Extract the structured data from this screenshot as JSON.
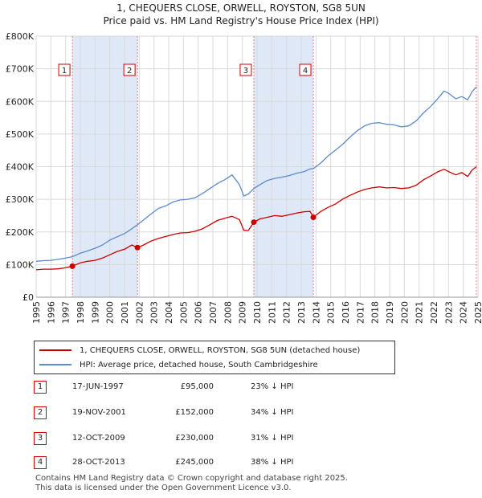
{
  "title_line1": "1, CHEQUERS CLOSE, ORWELL, ROYSTON, SG8 5UN",
  "title_line2": "Price paid vs. HM Land Registry's House Price Index (HPI)",
  "colors": {
    "property": "#cc0000",
    "hpi": "#5b8bc9",
    "shade": "#dce6f5",
    "vline": "#e08080"
  },
  "chart_data": {
    "type": "line",
    "xlim": [
      1995,
      2025
    ],
    "ylim": [
      0,
      800000
    ],
    "x_ticks": [
      "1995",
      "1996",
      "1997",
      "1998",
      "1999",
      "2000",
      "2001",
      "2002",
      "2003",
      "2004",
      "2005",
      "2006",
      "2007",
      "2008",
      "2009",
      "2010",
      "2011",
      "2012",
      "2013",
      "2014",
      "2015",
      "2016",
      "2017",
      "2018",
      "2019",
      "2020",
      "2021",
      "2022",
      "2023",
      "2024",
      "2025"
    ],
    "y_ticks": [
      {
        "value": 0,
        "label": "£0"
      },
      {
        "value": 100000,
        "label": "£100K"
      },
      {
        "value": 200000,
        "label": "£200K"
      },
      {
        "value": 300000,
        "label": "£300K"
      },
      {
        "value": 400000,
        "label": "£400K"
      },
      {
        "value": 500000,
        "label": "£500K"
      },
      {
        "value": 600000,
        "label": "£600K"
      },
      {
        "value": 700000,
        "label": "£700K"
      },
      {
        "value": 800000,
        "label": "£800K"
      }
    ],
    "shaded_ranges": [
      [
        1997.46,
        2001.88
      ],
      [
        2009.78,
        2013.82
      ]
    ],
    "series": [
      {
        "name": "1, CHEQUERS CLOSE, ORWELL, ROYSTON, SG8 5UN (detached house)",
        "color": "#cc0000",
        "points": [
          [
            1995.0,
            84000
          ],
          [
            1995.5,
            86000
          ],
          [
            1996.0,
            86000
          ],
          [
            1996.5,
            87000
          ],
          [
            1997.0,
            90000
          ],
          [
            1997.46,
            95000
          ],
          [
            1998.0,
            105000
          ],
          [
            1998.5,
            110000
          ],
          [
            1999.0,
            113000
          ],
          [
            1999.5,
            120000
          ],
          [
            2000.0,
            130000
          ],
          [
            2000.5,
            140000
          ],
          [
            2001.0,
            147000
          ],
          [
            2001.5,
            160000
          ],
          [
            2001.88,
            152000
          ],
          [
            2002.3,
            160000
          ],
          [
            2002.8,
            172000
          ],
          [
            2003.3,
            180000
          ],
          [
            2003.8,
            186000
          ],
          [
            2004.3,
            192000
          ],
          [
            2004.8,
            197000
          ],
          [
            2005.3,
            198000
          ],
          [
            2005.8,
            202000
          ],
          [
            2006.3,
            210000
          ],
          [
            2006.8,
            222000
          ],
          [
            2007.3,
            235000
          ],
          [
            2007.8,
            242000
          ],
          [
            2008.3,
            248000
          ],
          [
            2008.8,
            238000
          ],
          [
            2009.1,
            205000
          ],
          [
            2009.4,
            204000
          ],
          [
            2009.78,
            230000
          ],
          [
            2010.2,
            240000
          ],
          [
            2010.7,
            245000
          ],
          [
            2011.2,
            250000
          ],
          [
            2011.7,
            248000
          ],
          [
            2012.2,
            253000
          ],
          [
            2012.7,
            258000
          ],
          [
            2013.2,
            262000
          ],
          [
            2013.6,
            263000
          ],
          [
            2013.82,
            245000
          ],
          [
            2014.3,
            262000
          ],
          [
            2014.8,
            275000
          ],
          [
            2015.3,
            285000
          ],
          [
            2015.8,
            300000
          ],
          [
            2016.3,
            312000
          ],
          [
            2016.8,
            322000
          ],
          [
            2017.3,
            330000
          ],
          [
            2017.8,
            335000
          ],
          [
            2018.3,
            338000
          ],
          [
            2018.8,
            335000
          ],
          [
            2019.3,
            336000
          ],
          [
            2019.8,
            333000
          ],
          [
            2020.3,
            335000
          ],
          [
            2020.8,
            343000
          ],
          [
            2021.3,
            360000
          ],
          [
            2021.8,
            372000
          ],
          [
            2022.3,
            385000
          ],
          [
            2022.7,
            392000
          ],
          [
            2023.0,
            385000
          ],
          [
            2023.5,
            375000
          ],
          [
            2023.9,
            382000
          ],
          [
            2024.3,
            370000
          ],
          [
            2024.6,
            390000
          ],
          [
            2024.9,
            400000
          ]
        ]
      },
      {
        "name": "HPI: Average price, detached house, South Cambridgeshire",
        "color": "#5b8bc9",
        "points": [
          [
            1995.0,
            110000
          ],
          [
            1995.5,
            112000
          ],
          [
            1996.0,
            113000
          ],
          [
            1996.5,
            116000
          ],
          [
            1997.0,
            120000
          ],
          [
            1997.46,
            124000
          ],
          [
            1998.0,
            135000
          ],
          [
            1998.5,
            142000
          ],
          [
            1999.0,
            150000
          ],
          [
            1999.5,
            160000
          ],
          [
            2000.0,
            175000
          ],
          [
            2000.5,
            185000
          ],
          [
            2001.0,
            195000
          ],
          [
            2001.5,
            210000
          ],
          [
            2001.88,
            222000
          ],
          [
            2002.3,
            237000
          ],
          [
            2002.8,
            255000
          ],
          [
            2003.3,
            272000
          ],
          [
            2003.8,
            280000
          ],
          [
            2004.3,
            292000
          ],
          [
            2004.8,
            298000
          ],
          [
            2005.3,
            300000
          ],
          [
            2005.8,
            305000
          ],
          [
            2006.3,
            318000
          ],
          [
            2006.8,
            333000
          ],
          [
            2007.3,
            348000
          ],
          [
            2007.8,
            360000
          ],
          [
            2008.3,
            375000
          ],
          [
            2008.8,
            345000
          ],
          [
            2009.1,
            310000
          ],
          [
            2009.4,
            316000
          ],
          [
            2009.78,
            333000
          ],
          [
            2010.2,
            345000
          ],
          [
            2010.7,
            358000
          ],
          [
            2011.2,
            364000
          ],
          [
            2011.7,
            368000
          ],
          [
            2012.2,
            373000
          ],
          [
            2012.7,
            380000
          ],
          [
            2013.2,
            385000
          ],
          [
            2013.6,
            393000
          ],
          [
            2013.82,
            394000
          ],
          [
            2014.3,
            410000
          ],
          [
            2014.8,
            432000
          ],
          [
            2015.3,
            450000
          ],
          [
            2015.8,
            468000
          ],
          [
            2016.3,
            490000
          ],
          [
            2016.8,
            510000
          ],
          [
            2017.3,
            525000
          ],
          [
            2017.8,
            533000
          ],
          [
            2018.3,
            535000
          ],
          [
            2018.8,
            530000
          ],
          [
            2019.3,
            528000
          ],
          [
            2019.8,
            522000
          ],
          [
            2020.3,
            525000
          ],
          [
            2020.8,
            540000
          ],
          [
            2021.3,
            565000
          ],
          [
            2021.8,
            585000
          ],
          [
            2022.3,
            610000
          ],
          [
            2022.7,
            632000
          ],
          [
            2023.0,
            625000
          ],
          [
            2023.5,
            608000
          ],
          [
            2023.9,
            615000
          ],
          [
            2024.3,
            605000
          ],
          [
            2024.6,
            630000
          ],
          [
            2024.9,
            645000
          ]
        ]
      }
    ],
    "sales": [
      {
        "num": "1",
        "x": 1997.46,
        "y": 95000
      },
      {
        "num": "2",
        "x": 2001.88,
        "y": 152000
      },
      {
        "num": "3",
        "x": 2009.78,
        "y": 230000
      },
      {
        "num": "4",
        "x": 2013.82,
        "y": 245000
      }
    ]
  },
  "legend": {
    "property_label": "1, CHEQUERS CLOSE, ORWELL, ROYSTON, SG8 5UN (detached house)",
    "hpi_label": "HPI: Average price, detached house, South Cambridgeshire"
  },
  "transactions": [
    {
      "num": "1",
      "date": "17-JUN-1997",
      "price": "£95,000",
      "pct": "23% ↓ HPI"
    },
    {
      "num": "2",
      "date": "19-NOV-2001",
      "price": "£152,000",
      "pct": "34% ↓ HPI"
    },
    {
      "num": "3",
      "date": "12-OCT-2009",
      "price": "£230,000",
      "pct": "31% ↓ HPI"
    },
    {
      "num": "4",
      "date": "28-OCT-2013",
      "price": "£245,000",
      "pct": "38% ↓ HPI"
    }
  ],
  "footer": {
    "line1": "Contains HM Land Registry data © Crown copyright and database right 2025.",
    "line2": "This data is licensed under the Open Government Licence v3.0."
  }
}
